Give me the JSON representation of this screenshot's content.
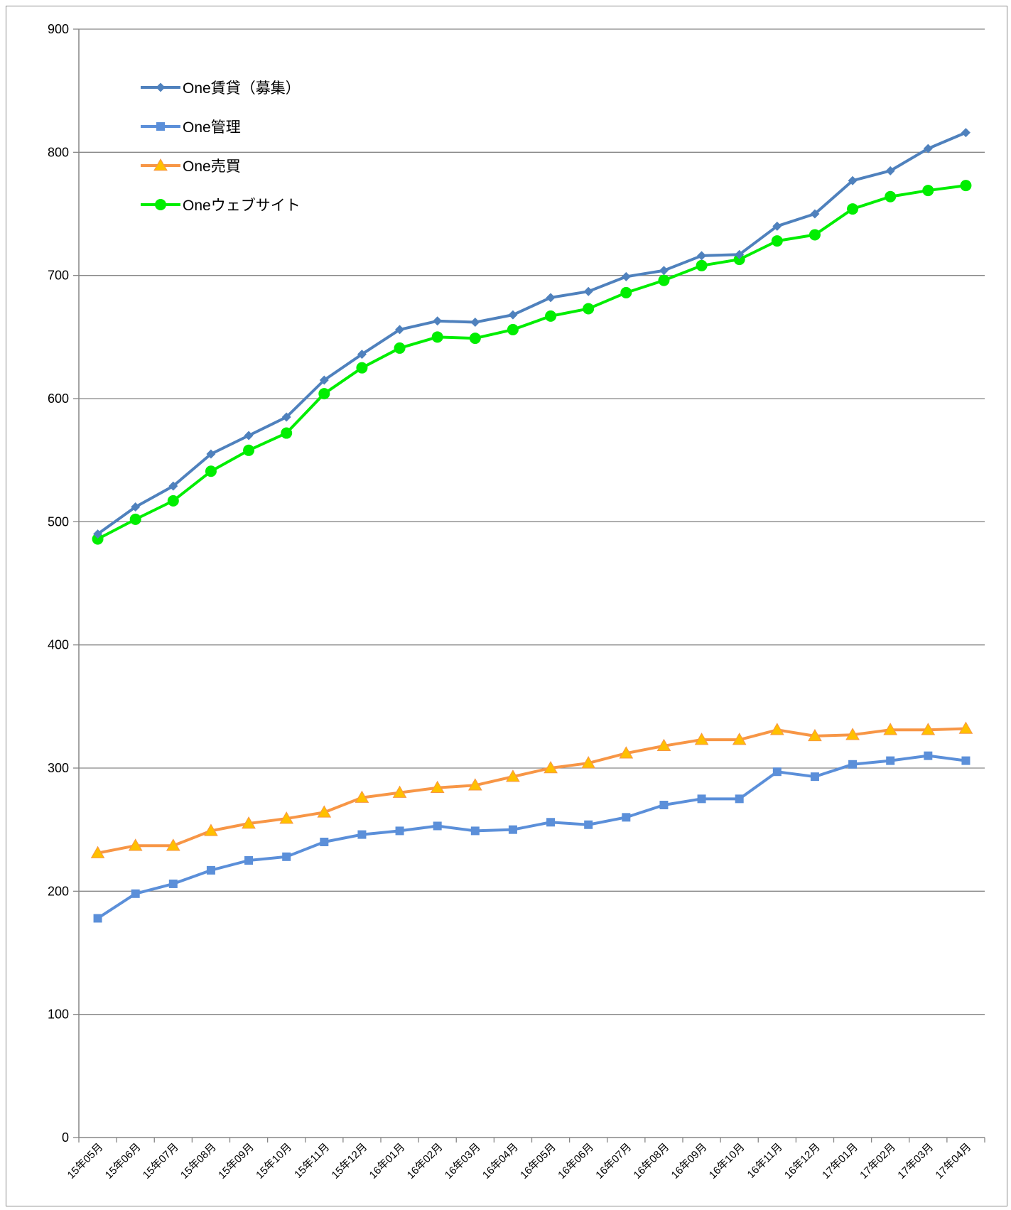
{
  "chart_data": {
    "type": "line",
    "categories": [
      "15年05月",
      "15年06月",
      "15年07月",
      "15年08月",
      "15年09月",
      "15年10月",
      "15年11月",
      "15年12月",
      "16年01月",
      "16年02月",
      "16年03月",
      "16年04月",
      "16年05月",
      "16年06月",
      "16年07月",
      "16年08月",
      "16年09月",
      "16年10月",
      "16年11月",
      "16年12月",
      "17年01月",
      "17年02月",
      "17年03月",
      "17年04月"
    ],
    "series": [
      {
        "name": "One賃貸（募集）",
        "color": "#4f81bd",
        "marker": "diamond",
        "values": [
          490,
          512,
          529,
          555,
          570,
          585,
          615,
          636,
          656,
          663,
          662,
          668,
          682,
          687,
          699,
          704,
          716,
          717,
          740,
          750,
          777,
          785,
          803,
          816
        ]
      },
      {
        "name": "One管理",
        "color": "#5b8fd9",
        "marker": "square",
        "values": [
          178,
          198,
          206,
          217,
          225,
          228,
          240,
          246,
          249,
          253,
          249,
          250,
          256,
          254,
          260,
          270,
          275,
          275,
          297,
          293,
          303,
          306,
          310,
          306
        ]
      },
      {
        "name": "One売買",
        "color": "#f79646",
        "marker": "triangle",
        "markerColor": "#ffc000",
        "values": [
          231,
          237,
          237,
          249,
          255,
          259,
          264,
          276,
          280,
          284,
          286,
          293,
          300,
          304,
          312,
          318,
          323,
          323,
          331,
          326,
          327,
          331,
          331,
          332
        ]
      },
      {
        "name": "Oneウェブサイト",
        "color": "#00ee00",
        "marker": "circle",
        "values": [
          486,
          502,
          517,
          541,
          558,
          572,
          604,
          625,
          641,
          650,
          649,
          656,
          667,
          673,
          686,
          696,
          708,
          713,
          728,
          733,
          754,
          764,
          769,
          773
        ]
      }
    ],
    "yticks": [
      0,
      100,
      200,
      300,
      400,
      500,
      600,
      700,
      800,
      900
    ],
    "ylim": [
      0,
      900
    ],
    "grid": true,
    "legend_position": "top-left inside"
  }
}
